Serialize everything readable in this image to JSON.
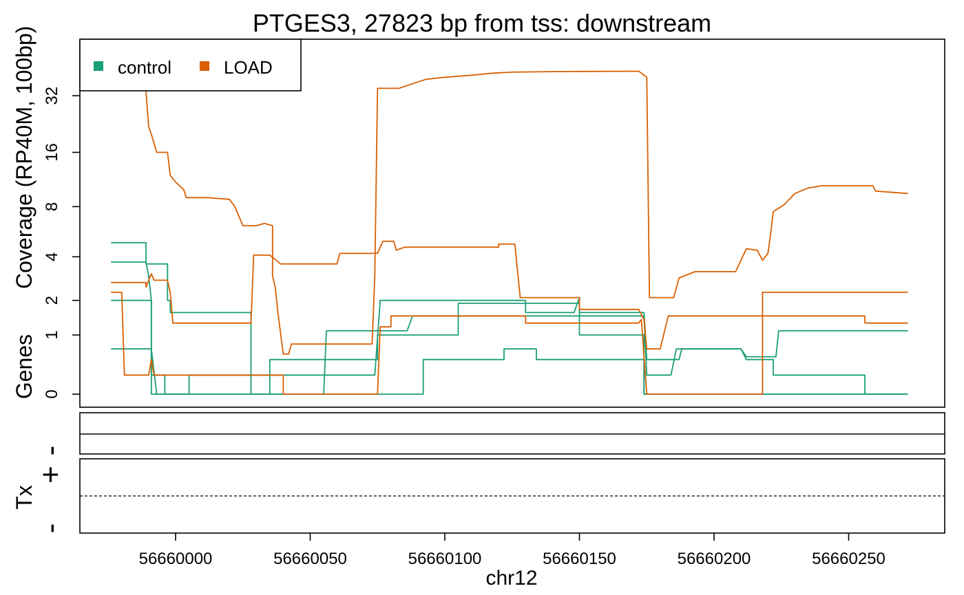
{
  "chart_data": {
    "type": "line",
    "title": "PTGES3, 27823 bp from tss: downstream",
    "xlabel": "chr12",
    "ylabel": "Coverage (RP40M, 100bp)",
    "genes_label": "Genes",
    "tx_label": "Tx",
    "strand_plus": "+",
    "strand_minus": "-",
    "x_ticks": [
      56660000,
      56660050,
      56660100,
      56660150,
      56660200,
      56660250
    ],
    "y_ticks": [
      {
        "value": 0,
        "label": "0"
      },
      {
        "value": 1,
        "label": "1"
      },
      {
        "value": 2,
        "label": "2"
      },
      {
        "value": 4,
        "label": "4"
      },
      {
        "value": 8,
        "label": "8"
      },
      {
        "value": 16,
        "label": "16"
      },
      {
        "value": 32,
        "label": "32"
      }
    ],
    "y_scale": "log2(y+1)",
    "xlim": [
      56659964,
      56660290
    ],
    "legend": {
      "position": "top-left",
      "entries": [
        {
          "name": "control",
          "color": "#1b9e77"
        },
        {
          "name": "LOAD",
          "color": "#d95f02"
        }
      ]
    },
    "series": [
      {
        "group": "control",
        "color": "#1b9e77",
        "points": [
          [
            56659976,
            4.9
          ],
          [
            56659989,
            4.9
          ],
          [
            56659989,
            3.6
          ],
          [
            56659997,
            3.6
          ],
          [
            56659997,
            2.0
          ],
          [
            56659998,
            2.0
          ],
          [
            56659998,
            1.6
          ],
          [
            56660028,
            1.6
          ],
          [
            56660028,
            0
          ],
          [
            56660092,
            0
          ],
          [
            56660092,
            0.5
          ],
          [
            56660121,
            0.5
          ],
          [
            56660122,
            0.5
          ],
          [
            56660122,
            0.7
          ],
          [
            56660134,
            0.7
          ],
          [
            56660134,
            0.5
          ],
          [
            56660174,
            0.5
          ],
          [
            56660174,
            0
          ],
          [
            56660272,
            0
          ]
        ]
      },
      {
        "group": "control",
        "color": "#1b9e77",
        "points": [
          [
            56659976,
            3.7
          ],
          [
            56659989,
            3.7
          ],
          [
            56659990,
            3.0
          ],
          [
            56659991,
            2.0
          ],
          [
            56659991,
            0
          ],
          [
            56660005,
            0
          ],
          [
            56660005,
            0.25
          ],
          [
            56660035,
            0.25
          ],
          [
            56660035,
            0.5
          ],
          [
            56660055,
            0.5
          ],
          [
            56660075,
            0.5
          ],
          [
            56660075,
            1.0
          ],
          [
            56660105,
            1.0
          ],
          [
            56660105,
            1.9
          ],
          [
            56660150,
            1.9
          ],
          [
            56660150,
            1.0
          ],
          [
            56660174,
            1.0
          ],
          [
            56660174,
            0
          ],
          [
            56660272,
            0
          ]
        ]
      },
      {
        "group": "control",
        "color": "#1b9e77",
        "points": [
          [
            56659976,
            2.0
          ],
          [
            56659991,
            2.0
          ],
          [
            56659991,
            0.25
          ],
          [
            56659996,
            0.25
          ],
          [
            56659996,
            0
          ],
          [
            56660035,
            0
          ],
          [
            56660035,
            0.25
          ],
          [
            56660074,
            0.25
          ],
          [
            56660076,
            2.0
          ],
          [
            56660130,
            2.0
          ],
          [
            56660130,
            1.6
          ],
          [
            56660148,
            1.6
          ],
          [
            56660150,
            2.1
          ],
          [
            56660150,
            1.6
          ],
          [
            56660174,
            1.6
          ],
          [
            56660175,
            0.5
          ],
          [
            56660187,
            0.5
          ],
          [
            56660188,
            0.7
          ],
          [
            56660210,
            0.7
          ],
          [
            56660212,
            0.5
          ],
          [
            56660222,
            0.5
          ],
          [
            56660222,
            0.25
          ],
          [
            56660256,
            0.25
          ],
          [
            56660256,
            0
          ],
          [
            56660272,
            0
          ]
        ]
      },
      {
        "group": "control",
        "color": "#1b9e77",
        "points": [
          [
            56659976,
            0.7
          ],
          [
            56659991,
            0.7
          ],
          [
            56659993,
            0
          ],
          [
            56660055,
            0
          ],
          [
            56660056,
            1.1
          ],
          [
            56660075,
            1.1
          ],
          [
            56660075,
            1.1
          ],
          [
            56660086,
            1.1
          ],
          [
            56660088,
            1.5
          ],
          [
            56660174,
            1.5
          ],
          [
            56660175,
            0.25
          ],
          [
            56660184,
            0.25
          ],
          [
            56660186,
            0.7
          ],
          [
            56660210,
            0.7
          ],
          [
            56660212,
            0.55
          ],
          [
            56660223,
            0.55
          ],
          [
            56660224,
            1.1
          ],
          [
            56660272,
            1.1
          ]
        ]
      },
      {
        "group": "LOAD",
        "color": "#d95f02",
        "points": [
          [
            56659976,
            2.3
          ],
          [
            56659980,
            2.3
          ],
          [
            56659981,
            0.25
          ],
          [
            56659990,
            0.25
          ],
          [
            56659991,
            0.5
          ],
          [
            56659992,
            0.25
          ],
          [
            56660040,
            0.25
          ],
          [
            56660040,
            0
          ],
          [
            56660075,
            0
          ],
          [
            56660076,
            1.2
          ],
          [
            56660080,
            1.2
          ],
          [
            56660080,
            1.5
          ],
          [
            56660130,
            1.5
          ],
          [
            56660130,
            1.3
          ],
          [
            56660150,
            1.3
          ],
          [
            56660150,
            1.3
          ],
          [
            56660172,
            1.3
          ],
          [
            56660173,
            1.4
          ],
          [
            56660175,
            0
          ],
          [
            56660218,
            0
          ],
          [
            56660218,
            2.3
          ],
          [
            56660272,
            2.3
          ]
        ]
      },
      {
        "group": "LOAD",
        "color": "#d95f02",
        "points": [
          [
            56659976,
            2.7
          ],
          [
            56659989,
            2.7
          ],
          [
            56659989,
            2.5
          ],
          [
            56659991,
            3.1
          ],
          [
            56659992,
            2.8
          ],
          [
            56659997,
            2.8
          ],
          [
            56659998,
            2.3
          ],
          [
            56659999,
            1.3
          ],
          [
            56660028,
            1.3
          ],
          [
            56660029,
            4.1
          ],
          [
            56660035,
            4.1
          ],
          [
            56660039,
            3.6
          ],
          [
            56660060,
            3.6
          ],
          [
            56660061,
            4.2
          ],
          [
            56660075,
            4.2
          ],
          [
            56660077,
            5.0
          ],
          [
            56660081,
            5.0
          ],
          [
            56660082,
            4.4
          ],
          [
            56660085,
            4.6
          ],
          [
            56660120,
            4.6
          ],
          [
            56660120,
            4.8
          ],
          [
            56660126,
            4.8
          ],
          [
            56660128,
            2.1
          ],
          [
            56660150,
            2.1
          ],
          [
            56660150,
            1.7
          ],
          [
            56660172,
            1.7
          ],
          [
            56660174,
            1.4
          ],
          [
            56660175,
            0.7
          ],
          [
            56660180,
            0.7
          ],
          [
            56660182,
            1.2
          ],
          [
            56660183,
            1.5
          ],
          [
            56660218,
            1.5
          ],
          [
            56660218,
            1.5
          ],
          [
            56660256,
            1.5
          ],
          [
            56660256,
            1.3
          ],
          [
            56660272,
            1.3
          ]
        ]
      },
      {
        "group": "LOAD",
        "color": "#d95f02",
        "points": [
          [
            56659989,
            34
          ],
          [
            56659990,
            22
          ],
          [
            56659991,
            20
          ],
          [
            56659993,
            16
          ],
          [
            56659997,
            16
          ],
          [
            56659998,
            12
          ],
          [
            56660000,
            11
          ],
          [
            56660003,
            10
          ],
          [
            56660004,
            9
          ],
          [
            56660012,
            9
          ],
          [
            56660020,
            8.8
          ],
          [
            56660022,
            8
          ],
          [
            56660025,
            6.2
          ],
          [
            56660030,
            6.2
          ],
          [
            56660033,
            6.4
          ],
          [
            56660036,
            6.2
          ],
          [
            56660036,
            3.0
          ],
          [
            56660037,
            2.5
          ],
          [
            56660038,
            1.6
          ],
          [
            56660040,
            0.6
          ],
          [
            56660042,
            0.6
          ],
          [
            56660043,
            0.8
          ],
          [
            56660053,
            0.8
          ],
          [
            56660073,
            0.8
          ],
          [
            56660074,
            3.0
          ],
          [
            56660075,
            35
          ],
          [
            56660083,
            35
          ],
          [
            56660088,
            37
          ],
          [
            56660093,
            39
          ],
          [
            56660100,
            40
          ],
          [
            56660110,
            41
          ],
          [
            56660118,
            42
          ],
          [
            56660125,
            42.5
          ],
          [
            56660140,
            42.8
          ],
          [
            56660172,
            43
          ],
          [
            56660173,
            42
          ],
          [
            56660175,
            40
          ],
          [
            56660176,
            2.1
          ],
          [
            56660185,
            2.1
          ],
          [
            56660187,
            2.9
          ],
          [
            56660193,
            3.2
          ],
          [
            56660208,
            3.2
          ],
          [
            56660210,
            3.8
          ],
          [
            56660212,
            4.5
          ],
          [
            56660216,
            4.4
          ],
          [
            56660218,
            3.8
          ],
          [
            56660220,
            4.2
          ],
          [
            56660221,
            5.5
          ],
          [
            56660222,
            7.5
          ],
          [
            56660226,
            8.2
          ],
          [
            56660230,
            9.5
          ],
          [
            56660235,
            10.2
          ],
          [
            56660240,
            10.5
          ],
          [
            56660259,
            10.5
          ],
          [
            56660260,
            9.8
          ],
          [
            56660272,
            9.5
          ]
        ]
      }
    ]
  }
}
